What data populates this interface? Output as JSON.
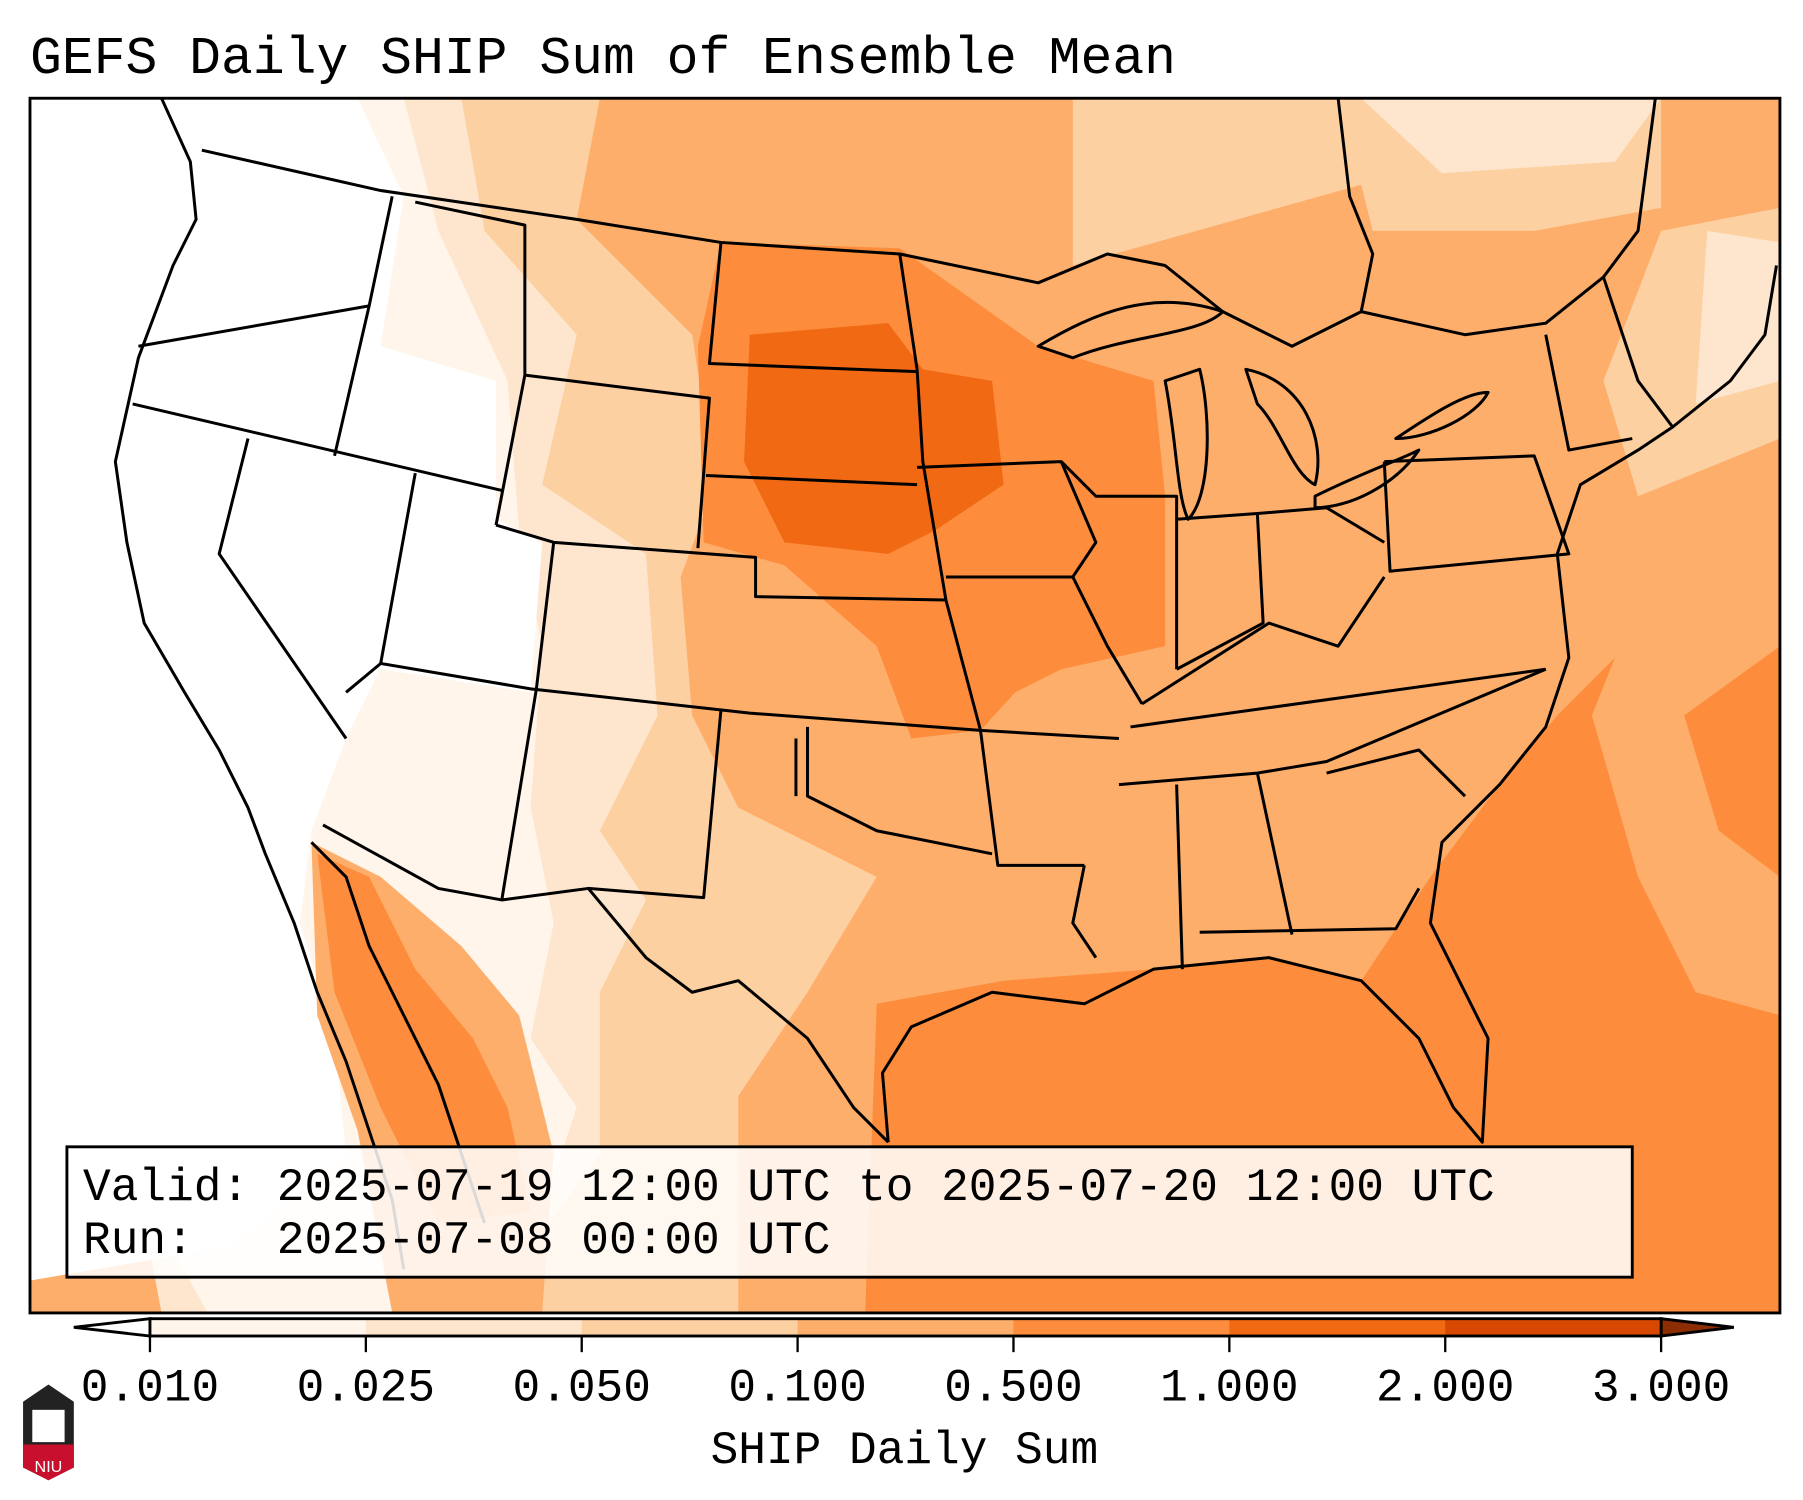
{
  "title": "GEFS Daily SHIP Sum of Ensemble Mean",
  "info_box": {
    "valid_line": "Valid: 2025-07-19 12:00 UTC to 2025-07-20 12:00 UTC",
    "run_line": "Run:   2025-07-08 00:00 UTC"
  },
  "colorbar": {
    "label": "SHIP Daily Sum",
    "ticks": [
      "0.010",
      "0.025",
      "0.050",
      "0.100",
      "0.500",
      "1.000",
      "2.000",
      "3.000"
    ],
    "under_color": "#ffffff",
    "colors": [
      "#fff5eb",
      "#fee6ce",
      "#fdd0a2",
      "#fdae6b",
      "#fd8d3c",
      "#f16913",
      "#d94801"
    ],
    "over_color": "#8c2d04"
  },
  "logo": {
    "text": "NIU"
  }
}
